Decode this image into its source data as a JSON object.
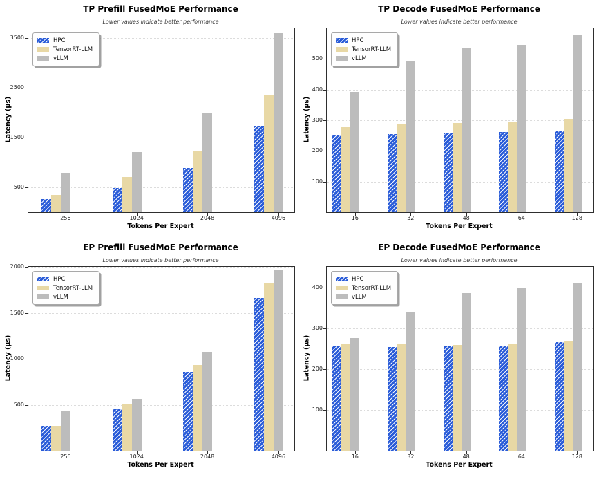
{
  "figure": {
    "background": "#ffffff"
  },
  "shared": {
    "subtitle": "Lower values indicate better performance",
    "xlabel": "Tokens Per Expert",
    "ylabel": "Latency (µs)",
    "legend_labels": [
      "HPC",
      "TensorRT-LLM",
      "vLLM"
    ],
    "colors": {
      "hpc": "#2a5cd8",
      "tensorrt_llm": "#e8d8a5",
      "vllm": "#bcbcbc",
      "hatch": "#ffffff"
    }
  },
  "chart_data": [
    {
      "type": "bar",
      "title": "TP Prefill FusedMoE Performance",
      "subtitle": "Lower values indicate better performance",
      "xlabel": "Tokens Per Expert",
      "ylabel": "Latency (µs)",
      "legend_position": "upper left",
      "grid": true,
      "categories": [
        "256",
        "1024",
        "2048",
        "4096"
      ],
      "series": [
        {
          "name": "HPC",
          "values": [
            270,
            485,
            890,
            1740
          ]
        },
        {
          "name": "TensorRT-LLM",
          "values": [
            350,
            715,
            1225,
            2365
          ]
        },
        {
          "name": "vLLM",
          "values": [
            795,
            1215,
            1985,
            3600
          ]
        }
      ],
      "yticks": [
        500,
        1500,
        2500,
        3500
      ],
      "ylim": [
        0,
        3700
      ]
    },
    {
      "type": "bar",
      "title": "TP Decode FusedMoE Performance",
      "subtitle": "Lower values indicate better performance",
      "xlabel": "Tokens Per Expert",
      "ylabel": "Latency (µs)",
      "legend_position": "upper left",
      "grid": true,
      "categories": [
        "16",
        "32",
        "48",
        "64",
        "128"
      ],
      "series": [
        {
          "name": "HPC",
          "values": [
            253,
            256,
            258,
            261,
            266
          ]
        },
        {
          "name": "TensorRT-LLM",
          "values": [
            279,
            287,
            290,
            294,
            305
          ]
        },
        {
          "name": "vLLM",
          "values": [
            392,
            494,
            538,
            547,
            578
          ]
        }
      ],
      "yticks": [
        100,
        200,
        300,
        400,
        500
      ],
      "ylim": [
        0,
        600
      ]
    },
    {
      "type": "bar",
      "title": "EP Prefill FusedMoE Performance",
      "subtitle": "Lower values indicate better performance",
      "xlabel": "Tokens Per Expert",
      "ylabel": "Latency (µs)",
      "legend_position": "upper left",
      "grid": true,
      "categories": [
        "256",
        "1024",
        "2048",
        "4096"
      ],
      "series": [
        {
          "name": "HPC",
          "values": [
            270,
            460,
            860,
            1665
          ]
        },
        {
          "name": "TensorRT-LLM",
          "values": [
            272,
            505,
            935,
            1825
          ]
        },
        {
          "name": "vLLM",
          "values": [
            430,
            562,
            1075,
            1970
          ]
        }
      ],
      "yticks": [
        500,
        1000,
        1500,
        2000
      ],
      "ylim": [
        0,
        2000
      ]
    },
    {
      "type": "bar",
      "title": "EP Decode FusedMoE Performance",
      "subtitle": "Lower values indicate better performance",
      "xlabel": "Tokens Per Expert",
      "ylabel": "Latency (µs)",
      "legend_position": "upper left",
      "grid": true,
      "categories": [
        "16",
        "32",
        "48",
        "64",
        "128"
      ],
      "series": [
        {
          "name": "HPC",
          "values": [
            256,
            254,
            257,
            258,
            266
          ]
        },
        {
          "name": "TensorRT-LLM",
          "values": [
            260,
            261,
            259,
            261,
            269
          ]
        },
        {
          "name": "vLLM",
          "values": [
            275,
            338,
            385,
            399,
            411
          ]
        }
      ],
      "yticks": [
        100,
        200,
        300,
        400
      ],
      "ylim": [
        0,
        450
      ]
    }
  ]
}
